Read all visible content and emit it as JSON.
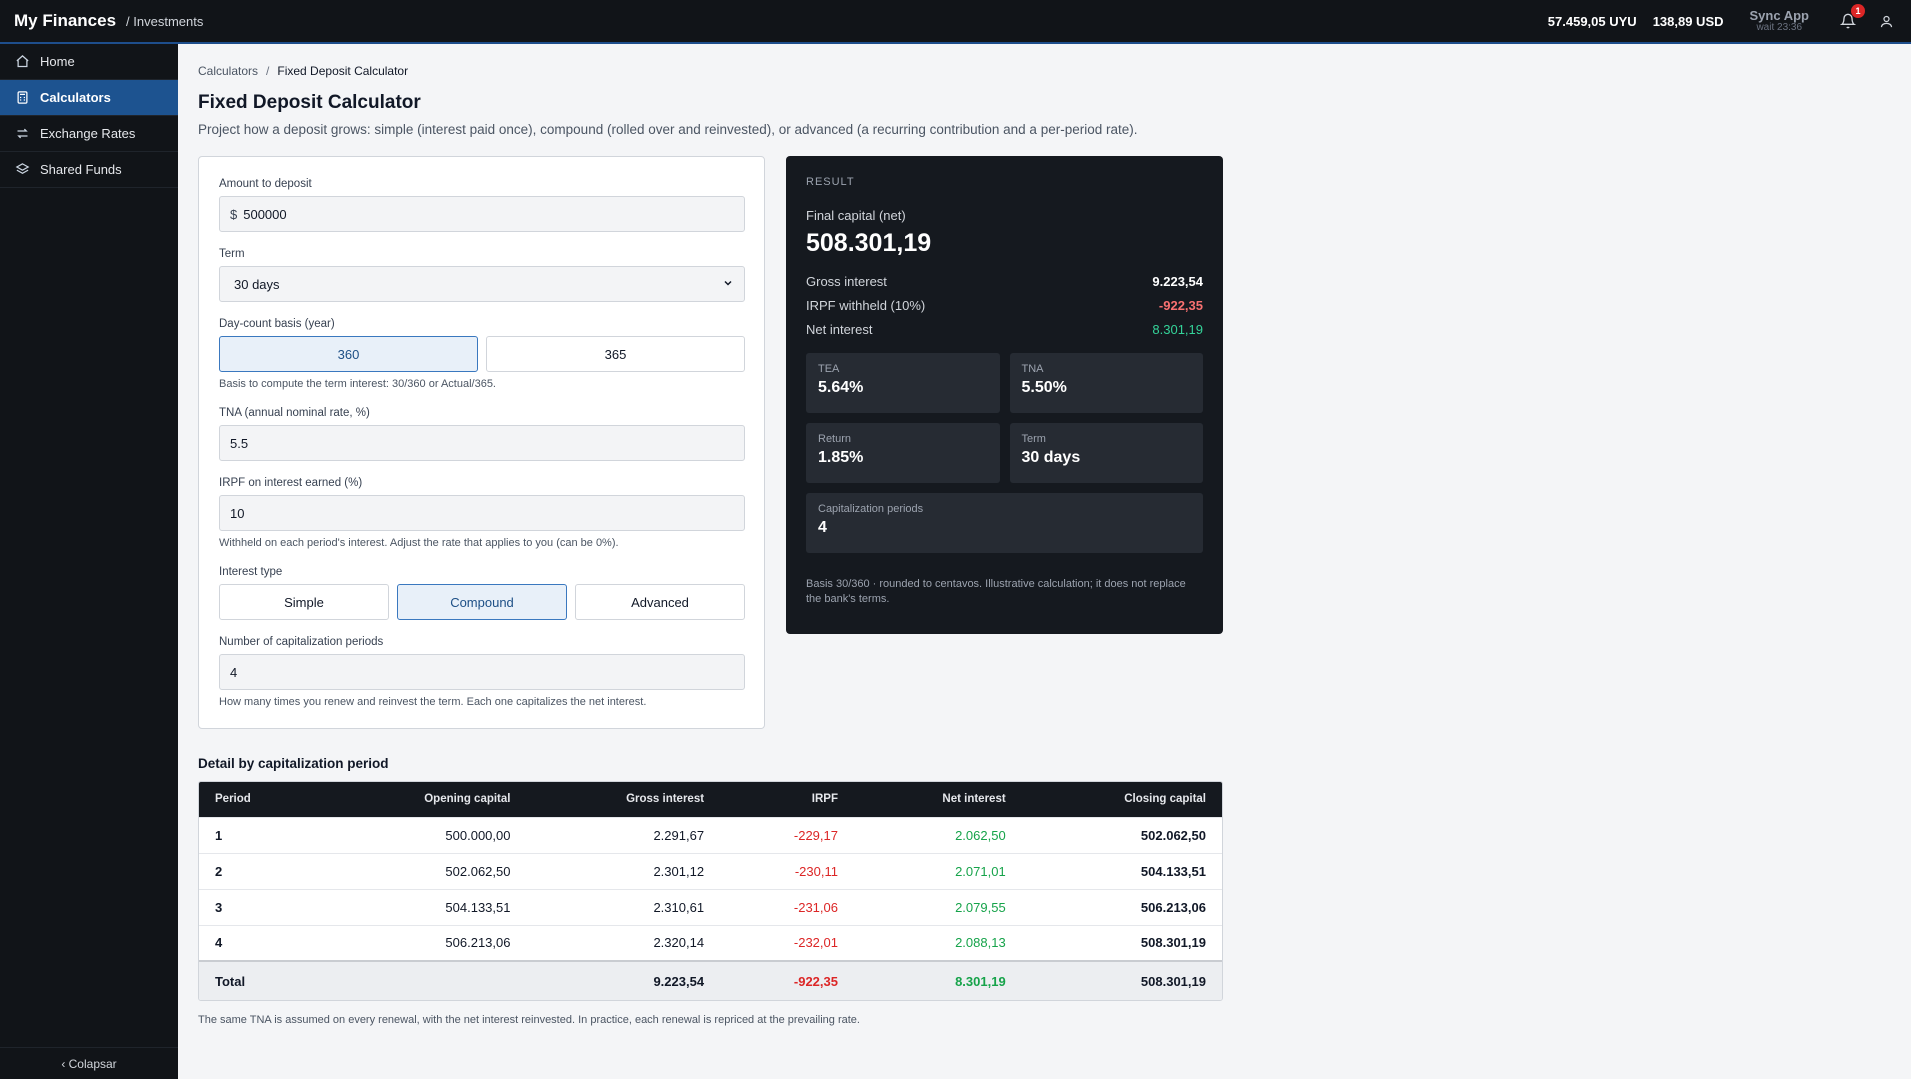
{
  "header": {
    "brand": "My Finances",
    "section": "/ Investments",
    "balance_uyu": "57.459,05 UYU",
    "balance_usd": "138,89 USD",
    "sync_title": "Sync App",
    "sync_sub": "wait 23:36",
    "notification_count": "1"
  },
  "sidebar": {
    "items": [
      {
        "label": "Home",
        "icon": "home-icon",
        "active": false
      },
      {
        "label": "Calculators",
        "icon": "calculator-icon",
        "active": true
      },
      {
        "label": "Exchange Rates",
        "icon": "exchange-icon",
        "active": false
      },
      {
        "label": "Shared Funds",
        "icon": "layers-icon",
        "active": false
      }
    ],
    "collapse_label": "‹  Colapsar"
  },
  "breadcrumb": {
    "parent": "Calculators",
    "separator": "/",
    "current": "Fixed Deposit Calculator"
  },
  "page": {
    "title": "Fixed Deposit Calculator",
    "description": "Project how a deposit grows: simple (interest paid once), compound (rolled over and reinvested), or advanced (a recurring contribution and a per-period rate)."
  },
  "form": {
    "amount_label": "Amount to deposit",
    "amount_prefix": "$",
    "amount_value": "500000",
    "term_label": "Term",
    "term_value": "30 days",
    "basis_label": "Day-count basis (year)",
    "basis_options": [
      "360",
      "365"
    ],
    "basis_selected": "360",
    "basis_hint": "Basis to compute the term interest: 30/360 or Actual/365.",
    "tna_label": "TNA (annual nominal rate, %)",
    "tna_value": "5.5",
    "irpf_label": "IRPF on interest earned (%)",
    "irpf_value": "10",
    "irpf_hint": "Withheld on each period's interest. Adjust the rate that applies to you (can be 0%).",
    "type_label": "Interest type",
    "type_options": [
      "Simple",
      "Compound",
      "Advanced"
    ],
    "type_selected": "Compound",
    "periods_label": "Number of capitalization periods",
    "periods_value": "4",
    "periods_hint": "How many times you renew and reinvest the term. Each one capitalizes the net interest."
  },
  "result": {
    "label": "RESULT",
    "final_label": "Final capital (net)",
    "final_value": "508.301,19",
    "gross_label": "Gross interest",
    "gross_value": "9.223,54",
    "irpf_label": "IRPF withheld (10%)",
    "irpf_value": "-922,35",
    "net_label": "Net interest",
    "net_value": "8.301,19",
    "tea_label": "TEA",
    "tea_value": "5.64%",
    "tna_label": "TNA",
    "tna_value": "5.50%",
    "return_label": "Return",
    "return_value": "1.85%",
    "term_label": "Term",
    "term_value": "30 days",
    "cap_label": "Capitalization periods",
    "cap_value": "4",
    "note": "Basis 30/360 · rounded to centavos. Illustrative calculation; it does not replace the bank's terms.",
    "colors": {
      "negative": "#f87171",
      "positive": "#34d399"
    }
  },
  "detail": {
    "title": "Detail by capitalization period",
    "columns": [
      "Period",
      "Opening capital",
      "Gross interest",
      "IRPF",
      "Net interest",
      "Closing capital"
    ],
    "rows": [
      [
        "1",
        "500.000,00",
        "2.291,67",
        "-229,17",
        "2.062,50",
        "502.062,50"
      ],
      [
        "2",
        "502.062,50",
        "2.301,12",
        "-230,11",
        "2.071,01",
        "504.133,51"
      ],
      [
        "3",
        "504.133,51",
        "2.310,61",
        "-231,06",
        "2.079,55",
        "506.213,06"
      ],
      [
        "4",
        "506.213,06",
        "2.320,14",
        "-232,01",
        "2.088,13",
        "508.301,19"
      ]
    ],
    "total": [
      "Total",
      "",
      "9.223,54",
      "-922,35",
      "8.301,19",
      "508.301,19"
    ],
    "footnote": "The same TNA is assumed on every renewal, with the net interest reinvested. In practice, each renewal is repriced at the prevailing rate."
  }
}
